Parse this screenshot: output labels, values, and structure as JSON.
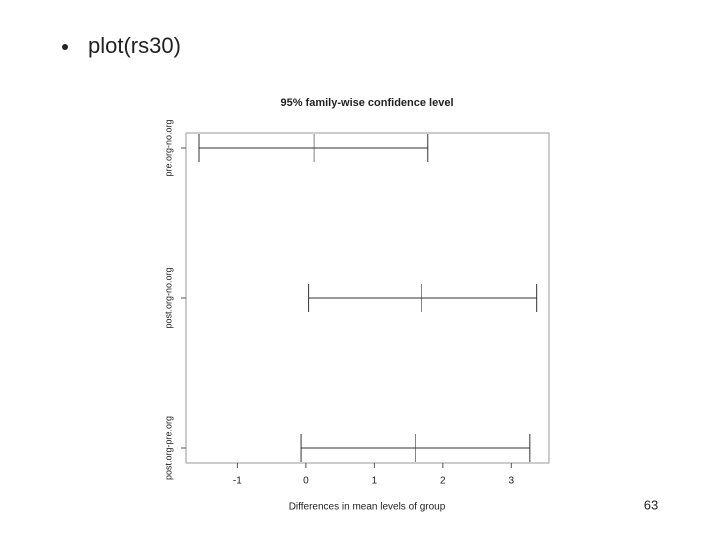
{
  "slide_title": "plot(rs30)",
  "page_number": "63",
  "chart_data": {
    "type": "interval",
    "title": "95% family-wise confidence level",
    "xlabel": "Differences in mean levels of group",
    "categories": [
      "pre.org-no.org",
      "post.org-no.org",
      "post.org-pre.org"
    ],
    "values": [
      0.12,
      1.69,
      1.6
    ],
    "lower": [
      -1.56,
      0.04,
      -0.07
    ],
    "upper": [
      1.78,
      3.37,
      3.27
    ],
    "color": "#333333",
    "xlim": [
      -1.75,
      3.55
    ],
    "xticks": [
      -1,
      0,
      1,
      2,
      3
    ]
  }
}
